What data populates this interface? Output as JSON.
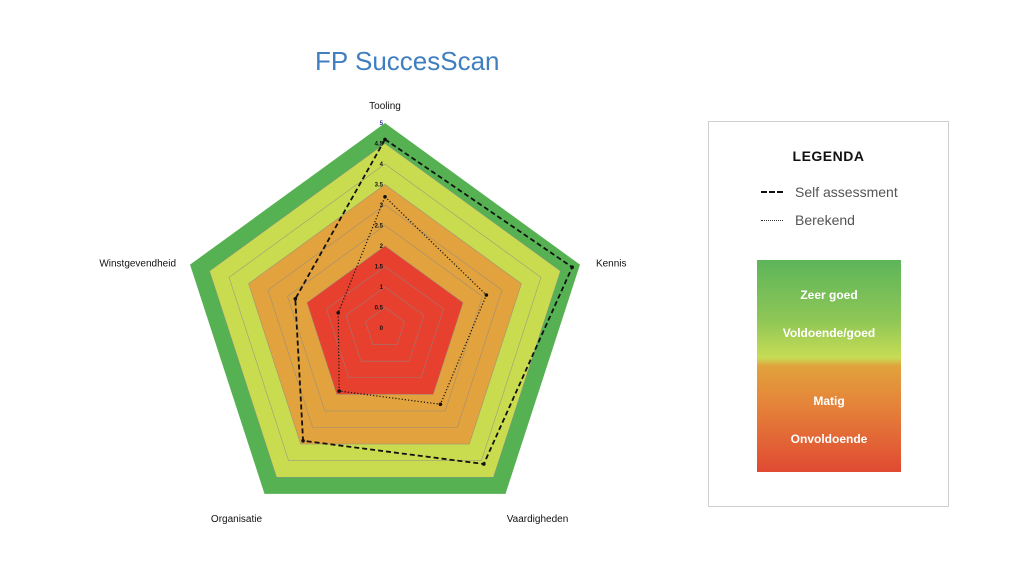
{
  "title": "FP SuccesScan",
  "chart_data": {
    "type": "radar",
    "title": "FP SuccesScan",
    "axes": [
      "Tooling",
      "Kennis",
      "Vaardigheden",
      "Organisatie",
      "Winstgevendheid"
    ],
    "r_range": [
      0,
      5
    ],
    "ticks": [
      "0",
      "0.5",
      "1",
      "1.5",
      "2",
      "2.5",
      "3",
      "3.5",
      "4",
      "4.5",
      "5"
    ],
    "bands": [
      {
        "from": 0,
        "to": 2,
        "color": "#e8402f"
      },
      {
        "from": 2,
        "to": 3.5,
        "color": "#e2a23d"
      },
      {
        "from": 3.5,
        "to": 4.5,
        "color": "#c9dc4f"
      },
      {
        "from": 4.5,
        "to": 5,
        "color": "#55b152"
      }
    ],
    "series": [
      {
        "name": "Self assessment",
        "values": [
          4.6,
          4.8,
          4.1,
          3.4,
          2.3
        ],
        "style": "dashed"
      },
      {
        "name": "Berekend",
        "values": [
          3.2,
          2.6,
          2.3,
          1.9,
          1.2
        ],
        "style": "dotted"
      }
    ]
  },
  "legend": {
    "title": "LEGENDA",
    "self_label": "Self assessment",
    "calc_label": "Berekend",
    "scale": [
      "Zeer goed",
      "Voldoende/goed",
      "Matig",
      "Onvoldoende"
    ]
  }
}
